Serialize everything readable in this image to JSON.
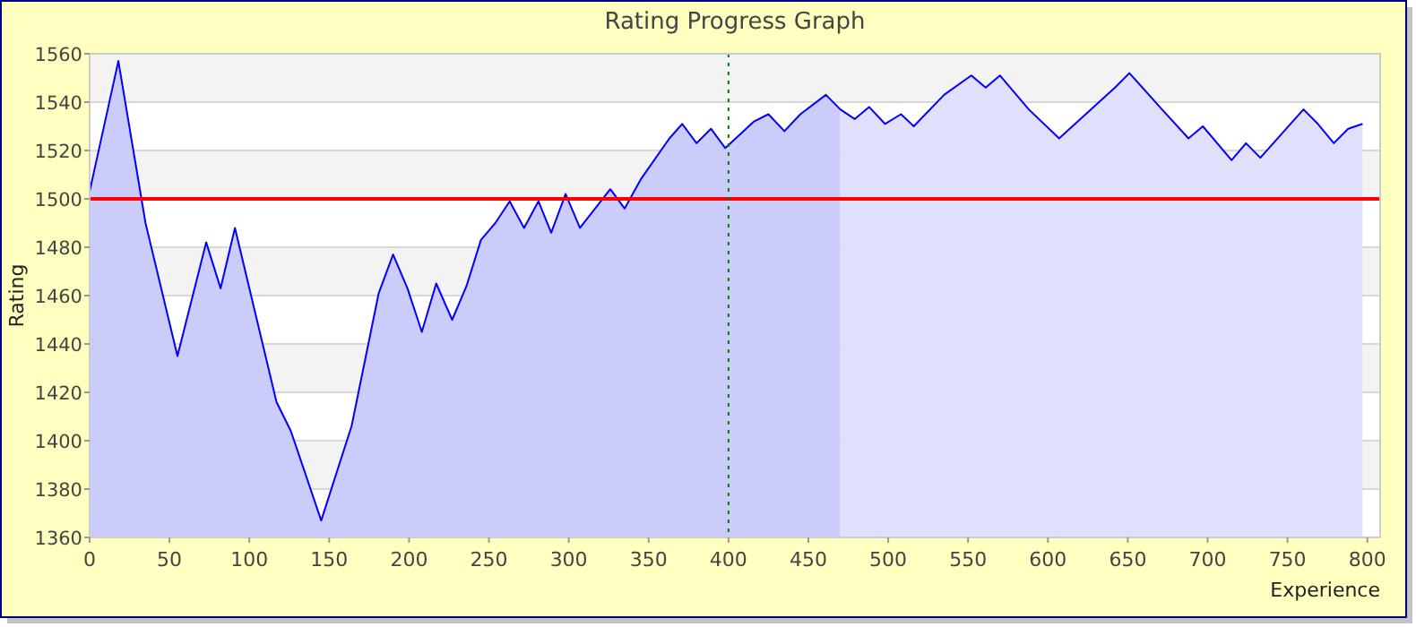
{
  "chart_data": {
    "type": "area",
    "title": "Rating Progress Graph",
    "xlabel": "Experience",
    "ylabel": "Rating",
    "xlim": [
      0,
      808
    ],
    "xticks": [
      0,
      50,
      100,
      150,
      200,
      250,
      300,
      350,
      400,
      450,
      500,
      550,
      600,
      650,
      700,
      750,
      800
    ],
    "ylim": [
      1360,
      1560
    ],
    "yticks": [
      1360,
      1380,
      1400,
      1420,
      1440,
      1460,
      1480,
      1500,
      1520,
      1540,
      1560
    ],
    "grid": "y",
    "series": [
      {
        "color": "#ccccfa",
        "x": [
          0,
          18,
          35,
          55,
          73,
          82,
          91,
          117,
          126,
          145,
          164,
          181,
          190,
          199,
          208,
          217,
          227,
          236,
          245,
          254,
          263,
          272,
          281,
          289,
          298,
          307,
          326,
          335,
          345,
          363,
          371,
          380,
          389,
          398,
          416,
          425,
          435,
          445,
          461,
          470
        ],
        "values": [
          1503,
          1557,
          1490,
          1435,
          1482,
          1463,
          1488,
          1416,
          1404,
          1367,
          1406,
          1461,
          1477,
          1463,
          1445,
          1465,
          1450,
          1464,
          1483,
          1490,
          1499,
          1488,
          1499,
          1486,
          1502,
          1488,
          1504,
          1496,
          1508,
          1525,
          1531,
          1523,
          1529,
          1521,
          1532,
          1535,
          1528,
          1535,
          1543,
          1537
        ]
      },
      {
        "color": "#e0e0fa",
        "x": [
          470,
          479,
          488,
          498,
          508,
          516,
          535,
          552,
          561,
          570,
          588,
          607,
          642,
          651,
          670,
          688,
          697,
          715,
          724,
          733,
          760,
          769,
          779,
          788,
          797
        ],
        "values": [
          1537,
          1533,
          1538,
          1531,
          1535,
          1530,
          1543,
          1551,
          1546,
          1551,
          1537,
          1525,
          1546,
          1552,
          1538,
          1525,
          1530,
          1516,
          1523,
          1517,
          1537,
          1531,
          1523,
          1529,
          1531
        ]
      },
      {
        "type": "line",
        "color": "#0000ff",
        "x": [
          0,
          18,
          35,
          55,
          73,
          82,
          91,
          117,
          126,
          145,
          164,
          181,
          190,
          199,
          208,
          217,
          227,
          236,
          245,
          254,
          263,
          272,
          281,
          289,
          298,
          307,
          326,
          335,
          345,
          363,
          371,
          380,
          389,
          398,
          416,
          425,
          435,
          445,
          461,
          470,
          479,
          488,
          498,
          508,
          516,
          535,
          552,
          561,
          570,
          588,
          607,
          642,
          651,
          670,
          688,
          697,
          715,
          724,
          733,
          760,
          769,
          779,
          788,
          797
        ],
        "values": [
          1503,
          1557,
          1490,
          1435,
          1482,
          1463,
          1488,
          1416,
          1404,
          1367,
          1406,
          1461,
          1477,
          1463,
          1445,
          1465,
          1450,
          1464,
          1483,
          1490,
          1499,
          1488,
          1499,
          1486,
          1502,
          1488,
          1504,
          1496,
          1508,
          1525,
          1531,
          1523,
          1529,
          1521,
          1532,
          1535,
          1528,
          1535,
          1543,
          1537,
          1533,
          1538,
          1531,
          1535,
          1530,
          1543,
          1551,
          1546,
          1551,
          1537,
          1525,
          1546,
          1552,
          1538,
          1525,
          1530,
          1516,
          1523,
          1517,
          1537,
          1531,
          1523,
          1529,
          1531
        ]
      }
    ],
    "ref_lines": [
      {
        "axis": "y",
        "value": 1500,
        "color": "#ff0000",
        "line_style": "solid"
      },
      {
        "axis": "x",
        "value": 400,
        "color": "#008000",
        "line_style": "dotted"
      }
    ]
  }
}
